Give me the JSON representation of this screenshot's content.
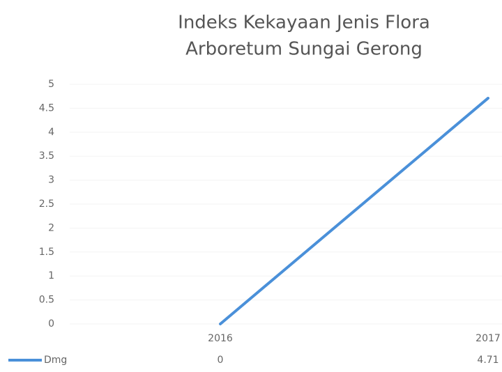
{
  "chart_data": {
    "type": "line",
    "title": [
      "Indeks Kekayaan Jenis Flora",
      "Arboretum Sungai Gerong"
    ],
    "categories": [
      "2016",
      "2017"
    ],
    "series": [
      {
        "name": "Dmg",
        "color": "#4a90d9",
        "values": [
          0,
          4.71
        ]
      }
    ],
    "ylim": [
      0,
      5
    ],
    "yticks": [
      0,
      0.5,
      1,
      1.5,
      2,
      2.5,
      3,
      3.5,
      4,
      4.5,
      5
    ],
    "grid": true
  }
}
